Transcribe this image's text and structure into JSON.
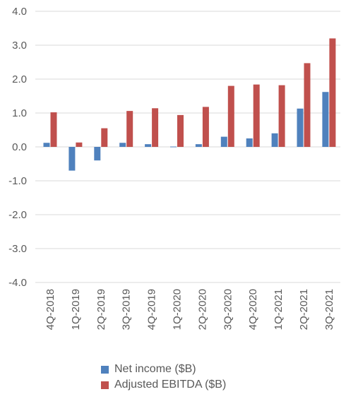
{
  "chart_data": {
    "type": "bar",
    "title": "",
    "xlabel": "",
    "ylabel": "",
    "categories": [
      "4Q-2018",
      "1Q-2019",
      "2Q-2019",
      "3Q-2019",
      "4Q-2019",
      "1Q-2020",
      "2Q-2020",
      "3Q-2020",
      "4Q-2020",
      "1Q-2021",
      "2Q-2021",
      "3Q-2021"
    ],
    "ylim": [
      -4.0,
      4.0
    ],
    "yticks": [
      "4.0",
      "3.0",
      "2.0",
      "1.0",
      "0.0",
      "-1.0",
      "-2.0",
      "-3.0",
      "-4.0"
    ],
    "grid": true,
    "legend_position": "bottom",
    "series": [
      {
        "name": "Net income ($B)",
        "color": "#4f81bd",
        "values": [
          0.12,
          -0.7,
          -0.4,
          0.12,
          0.08,
          0.01,
          0.08,
          0.3,
          0.25,
          0.4,
          1.13,
          1.62
        ]
      },
      {
        "name": "Adjusted EBITDA ($B)",
        "color": "#c0504d",
        "values": [
          1.02,
          0.13,
          0.55,
          1.06,
          1.14,
          0.94,
          1.18,
          1.8,
          1.84,
          1.82,
          2.47,
          3.2
        ]
      }
    ]
  }
}
